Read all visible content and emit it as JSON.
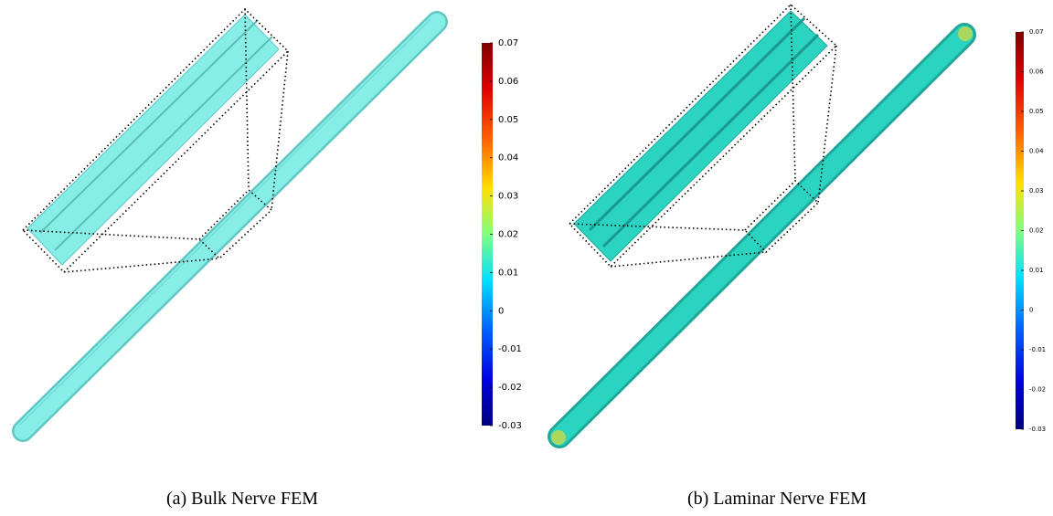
{
  "panels": [
    {
      "caption": "(a) Bulk Nerve FEM",
      "colorbar": {
        "lim": [
          -0.03,
          0.07
        ],
        "ticks": [
          0.07,
          0.06,
          0.05,
          0.04,
          0.03,
          0.02,
          0.01,
          0,
          -0.01,
          -0.02,
          -0.03
        ]
      }
    },
    {
      "caption": "(b) Laminar Nerve FEM",
      "colorbar": {
        "lim": [
          -0.03,
          0.07
        ],
        "ticks": [
          0.07,
          0.06,
          0.05,
          0.04,
          0.03,
          0.02,
          0.01,
          0,
          -0.01,
          -0.02,
          -0.03
        ]
      }
    }
  ]
}
